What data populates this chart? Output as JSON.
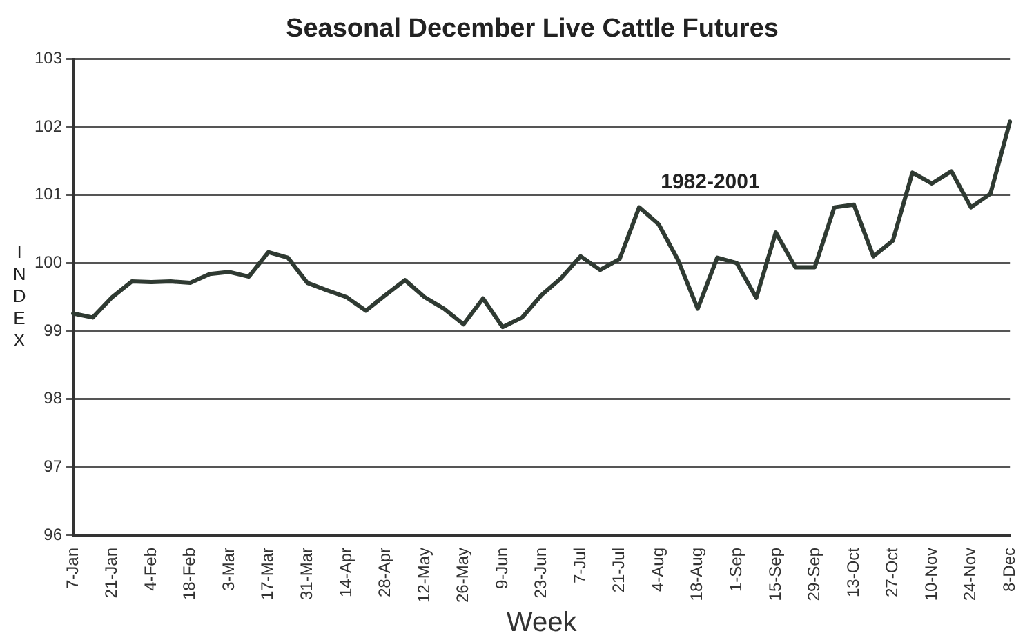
{
  "chart_data": {
    "type": "line",
    "title": "Seasonal December Live Cattle Futures",
    "xlabel": "Week",
    "ylabel": "INDEX",
    "categories": [
      "7-Jan",
      null,
      "21-Jan",
      null,
      "4-Feb",
      null,
      "18-Feb",
      null,
      "3-Mar",
      null,
      "17-Mar",
      null,
      "31-Mar",
      null,
      "14-Apr",
      null,
      "28-Apr",
      null,
      "12-May",
      null,
      "26-May",
      null,
      "9-Jun",
      null,
      "23-Jun",
      null,
      "7-Jul",
      null,
      "21-Jul",
      null,
      "4-Aug",
      null,
      "18-Aug",
      null,
      "1-Sep",
      null,
      "15-Sep",
      null,
      "29-Sep",
      null,
      "13-Oct",
      null,
      "27-Oct",
      null,
      "10-Nov",
      null,
      "24-Nov",
      null,
      "8-Dec"
    ],
    "series": [
      {
        "name": "1982-2001",
        "color": "#2f3a32",
        "values": [
          99.26,
          99.2,
          99.5,
          99.73,
          99.72,
          99.73,
          99.71,
          99.84,
          99.87,
          99.8,
          100.16,
          100.08,
          99.71,
          99.6,
          99.5,
          99.3,
          99.53,
          99.75,
          99.5,
          99.33,
          99.1,
          99.48,
          99.06,
          99.2,
          99.53,
          99.78,
          100.1,
          99.9,
          100.06,
          100.82,
          100.57,
          100.04,
          99.33,
          100.08,
          100.0,
          99.49,
          100.45,
          99.94,
          99.94,
          100.82,
          100.86,
          100.1,
          100.33,
          101.33,
          101.17,
          101.35,
          100.82,
          101.02,
          102.08
        ]
      }
    ],
    "ylim": [
      96,
      103
    ],
    "yticks": [
      96,
      97,
      98,
      99,
      100,
      101,
      102,
      103
    ],
    "grid": "y",
    "legend": false,
    "marker": "none",
    "line_style": "solid"
  }
}
